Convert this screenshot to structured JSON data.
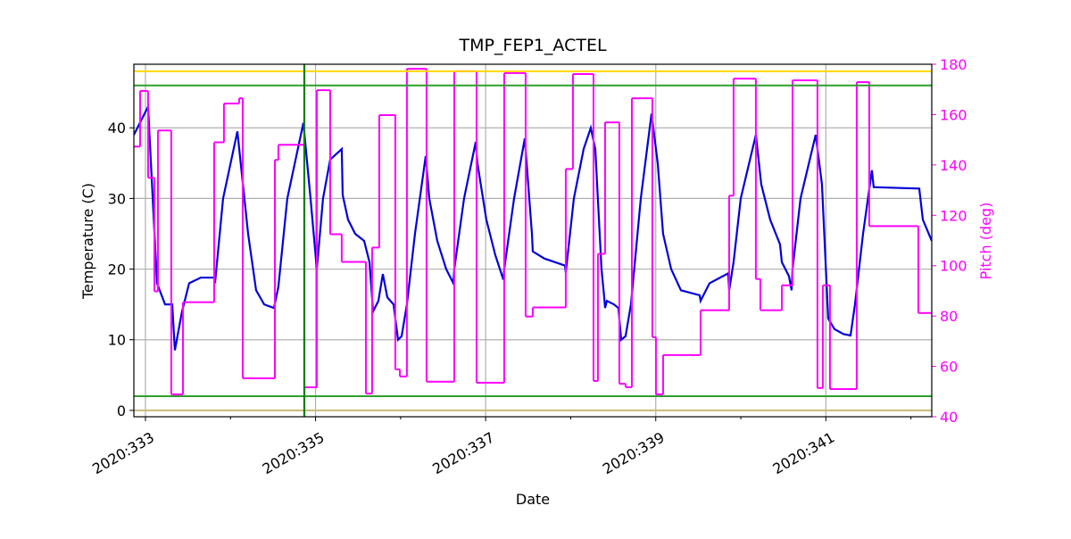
{
  "chart_data": {
    "type": "line",
    "title": "TMP_FEP1_ACTEL",
    "xlabel": "Date",
    "ylabel": "Temperature (C)",
    "y2label": "Pitch (deg)",
    "y2color": "#ff00ff",
    "grid": true,
    "xlim": [
      332.864,
      342.245
    ],
    "xticks": [
      {
        "value": 333,
        "label": "2020:333"
      },
      {
        "value": 335,
        "label": "2020:335"
      },
      {
        "value": 337,
        "label": "2020:337"
      },
      {
        "value": 339,
        "label": "2020:339"
      },
      {
        "value": 341,
        "label": "2020:341"
      }
    ],
    "xminorticks": [
      334,
      336,
      338,
      340,
      342
    ],
    "ylim": [
      -0.9,
      49
    ],
    "yticks": [
      0,
      10,
      20,
      30,
      40
    ],
    "y2lim": [
      40,
      180
    ],
    "y2ticks": [
      40,
      60,
      80,
      100,
      120,
      140,
      160,
      180
    ],
    "hlines": [
      {
        "value": 48,
        "color": "#ffd700"
      },
      {
        "value": 46,
        "color": "#2ca02c"
      },
      {
        "value": 2,
        "color": "#2ca02c"
      },
      {
        "value": 0,
        "color": "#c8b97a"
      }
    ],
    "vlines": [
      {
        "value": 334.868,
        "color": "#008000"
      }
    ],
    "series": [
      {
        "color": "#0000dd",
        "axis": "y",
        "x": [
          332.864,
          333.031,
          333.136,
          333.231,
          333.315,
          333.346,
          333.43,
          333.514,
          333.651,
          333.808,
          333.818,
          333.913,
          334.081,
          334.207,
          334.301,
          334.396,
          334.511,
          334.563,
          334.668,
          334.857,
          334.941,
          335.015,
          335.088,
          335.172,
          335.308,
          335.319,
          335.382,
          335.466,
          335.571,
          335.634,
          335.676,
          335.739,
          335.791,
          335.844,
          335.917,
          335.97,
          336.012,
          336.074,
          336.169,
          336.295,
          336.337,
          336.431,
          336.536,
          336.62,
          336.631,
          336.746,
          336.883,
          336.903,
          337.008,
          337.113,
          337.208,
          337.218,
          337.334,
          337.46,
          337.544,
          337.554,
          337.69,
          337.932,
          337.942,
          338.037,
          338.152,
          338.236,
          338.289,
          338.362,
          338.394,
          338.404,
          338.425,
          338.509,
          338.561,
          338.593,
          338.645,
          338.708,
          338.824,
          338.95,
          339.023,
          339.086,
          339.181,
          339.296,
          339.516,
          339.527,
          339.632,
          339.852,
          339.863,
          339.915,
          339.999,
          340.177,
          340.24,
          340.345,
          340.461,
          340.482,
          340.566,
          340.597,
          340.608,
          340.702,
          340.88,
          340.954,
          341.027,
          341.101,
          341.206,
          341.29,
          341.342,
          341.437,
          341.541,
          341.562,
          342.098,
          342.14,
          342.245
        ],
        "values": [
          39,
          43,
          18,
          15,
          15,
          8.5,
          14,
          18,
          18.8,
          18.8,
          18,
          30,
          39.5,
          25,
          17,
          15,
          14.5,
          17.5,
          30,
          40.7,
          30,
          20,
          30,
          35.5,
          37,
          30.5,
          27,
          25,
          24,
          21,
          14,
          15.5,
          19.3,
          16,
          15,
          10,
          10.5,
          15,
          25,
          36,
          30,
          24,
          20,
          18,
          20,
          30,
          38,
          35,
          27,
          22,
          18.5,
          20,
          30,
          38.5,
          25,
          22.5,
          21.5,
          20.5,
          19.5,
          30,
          37,
          40,
          37,
          20,
          16,
          14.5,
          15.5,
          15,
          14.5,
          10,
          10.5,
          15,
          30,
          42,
          35,
          25,
          20,
          17,
          16.3,
          15.5,
          18,
          19.4,
          17,
          21,
          30,
          39,
          32,
          27,
          23.5,
          21,
          19,
          17,
          20,
          30,
          39,
          32,
          13,
          11.5,
          10.8,
          10.6,
          15,
          25,
          34,
          31.6,
          31.4,
          27,
          24
        ]
      },
      {
        "color": "#ff00ff",
        "axis": "y2",
        "step": "post",
        "x": [
          332.864,
          332.937,
          333.031,
          333.105,
          333.147,
          333.304,
          333.441,
          333.808,
          333.923,
          334.102,
          334.144,
          334.522,
          334.563,
          334.868,
          335.015,
          335.172,
          335.308,
          335.592,
          335.665,
          335.749,
          335.938,
          335.991,
          336.074,
          336.305,
          336.631,
          336.893,
          337.218,
          337.47,
          337.554,
          337.942,
          338.026,
          338.268,
          338.32,
          338.404,
          338.572,
          338.645,
          338.719,
          338.96,
          339.002,
          339.086,
          339.527,
          339.863,
          339.915,
          340.177,
          340.23,
          340.482,
          340.608,
          340.901,
          340.964,
          341.048,
          341.363,
          341.51,
          342.087
        ],
        "values": [
          147.3,
          169.4,
          134.9,
          89.8,
          153.7,
          48.9,
          85.5,
          149,
          164.4,
          166.5,
          55.3,
          142,
          148,
          51.7,
          169.7,
          112.5,
          101.5,
          49.2,
          107.2,
          159.8,
          58.8,
          56,
          178.2,
          53.9,
          177.2,
          53.5,
          176.5,
          79.8,
          83.4,
          138.4,
          176.1,
          54.2,
          104.7,
          156.9,
          53.1,
          51.7,
          166.5,
          71.6,
          48.9,
          64.5,
          82.3,
          127.8,
          174.3,
          94.7,
          82.3,
          92.2,
          173.6,
          51.4,
          92.2,
          51,
          172.9,
          115.7,
          81.2
        ]
      }
    ]
  }
}
